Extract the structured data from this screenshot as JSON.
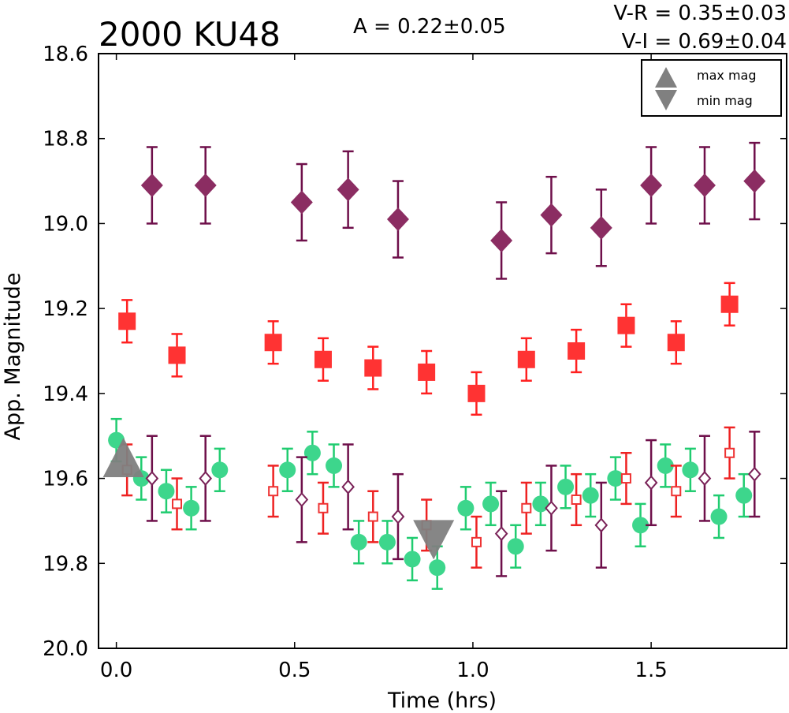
{
  "chart_data": {
    "type": "scatter",
    "title": "2000 KU48",
    "annotations": {
      "amplitude": "A  = 0.22±0.05",
      "v_minus_r": "V-R = 0.35±0.03",
      "v_minus_i": "V-I  = 0.69±0.04"
    },
    "xlabel": "Time (hrs)",
    "ylabel": "App. Magnitude",
    "xlim": [
      -0.05,
      1.88
    ],
    "ylim": [
      20.0,
      18.6
    ],
    "y_inverted": true,
    "xticks": [
      "0.0",
      "0.5",
      "1.0",
      "1.5"
    ],
    "xtick_values": [
      0.0,
      0.5,
      1.0,
      1.5
    ],
    "yticks": [
      "18.6",
      "18.8",
      "19.0",
      "19.2",
      "19.4",
      "19.6",
      "19.8",
      "20.0"
    ],
    "ytick_values": [
      18.6,
      18.8,
      19.0,
      19.2,
      19.4,
      19.6,
      19.8,
      20.0
    ],
    "grid": false,
    "legend_placement": "top-right",
    "legend": [
      {
        "label": "max mag",
        "marker": "triangle-up",
        "color": "#808080"
      },
      {
        "label": "min mag",
        "marker": "triangle-down",
        "color": "#808080"
      }
    ],
    "series": [
      {
        "marker": "diamond-filled",
        "color": "#8b2d62",
        "errcolor": "#6e0f4a",
        "points": [
          {
            "x": 0.1,
            "y": 18.91,
            "err": 0.09
          },
          {
            "x": 0.25,
            "y": 18.91,
            "err": 0.09
          },
          {
            "x": 0.52,
            "y": 18.95,
            "err": 0.09
          },
          {
            "x": 0.65,
            "y": 18.92,
            "err": 0.09
          },
          {
            "x": 0.79,
            "y": 18.99,
            "err": 0.09
          },
          {
            "x": 1.08,
            "y": 19.04,
            "err": 0.09
          },
          {
            "x": 1.22,
            "y": 18.98,
            "err": 0.09
          },
          {
            "x": 1.36,
            "y": 19.01,
            "err": 0.09
          },
          {
            "x": 1.5,
            "y": 18.91,
            "err": 0.09
          },
          {
            "x": 1.65,
            "y": 18.91,
            "err": 0.09
          },
          {
            "x": 1.79,
            "y": 18.9,
            "err": 0.09
          }
        ]
      },
      {
        "marker": "square-filled",
        "color": "#ff3333",
        "errcolor": "#ff2020",
        "points": [
          {
            "x": 0.03,
            "y": 19.23,
            "err": 0.05
          },
          {
            "x": 0.17,
            "y": 19.31,
            "err": 0.05
          },
          {
            "x": 0.44,
            "y": 19.28,
            "err": 0.05
          },
          {
            "x": 0.58,
            "y": 19.32,
            "err": 0.05
          },
          {
            "x": 0.72,
            "y": 19.34,
            "err": 0.05
          },
          {
            "x": 0.87,
            "y": 19.35,
            "err": 0.05
          },
          {
            "x": 1.01,
            "y": 19.4,
            "err": 0.05
          },
          {
            "x": 1.15,
            "y": 19.32,
            "err": 0.05
          },
          {
            "x": 1.29,
            "y": 19.3,
            "err": 0.05
          },
          {
            "x": 1.43,
            "y": 19.24,
            "err": 0.05
          },
          {
            "x": 1.57,
            "y": 19.28,
            "err": 0.05
          },
          {
            "x": 1.72,
            "y": 19.19,
            "err": 0.05
          }
        ]
      },
      {
        "marker": "circle-filled",
        "color": "#3dd68c",
        "errcolor": "#20cc70",
        "points": [
          {
            "x": 0.0,
            "y": 19.51,
            "err": 0.05
          },
          {
            "x": 0.07,
            "y": 19.6,
            "err": 0.05
          },
          {
            "x": 0.14,
            "y": 19.63,
            "err": 0.05
          },
          {
            "x": 0.21,
            "y": 19.67,
            "err": 0.05
          },
          {
            "x": 0.29,
            "y": 19.58,
            "err": 0.05
          },
          {
            "x": 0.48,
            "y": 19.58,
            "err": 0.05
          },
          {
            "x": 0.55,
            "y": 19.54,
            "err": 0.05
          },
          {
            "x": 0.61,
            "y": 19.57,
            "err": 0.05
          },
          {
            "x": 0.68,
            "y": 19.75,
            "err": 0.05
          },
          {
            "x": 0.76,
            "y": 19.75,
            "err": 0.05
          },
          {
            "x": 0.83,
            "y": 19.79,
            "err": 0.05
          },
          {
            "x": 0.9,
            "y": 19.81,
            "err": 0.05
          },
          {
            "x": 0.98,
            "y": 19.67,
            "err": 0.05
          },
          {
            "x": 1.05,
            "y": 19.66,
            "err": 0.05
          },
          {
            "x": 1.12,
            "y": 19.76,
            "err": 0.05
          },
          {
            "x": 1.19,
            "y": 19.66,
            "err": 0.05
          },
          {
            "x": 1.26,
            "y": 19.62,
            "err": 0.05
          },
          {
            "x": 1.33,
            "y": 19.64,
            "err": 0.05
          },
          {
            "x": 1.4,
            "y": 19.6,
            "err": 0.05
          },
          {
            "x": 1.47,
            "y": 19.71,
            "err": 0.05
          },
          {
            "x": 1.54,
            "y": 19.57,
            "err": 0.05
          },
          {
            "x": 1.61,
            "y": 19.58,
            "err": 0.05
          },
          {
            "x": 1.69,
            "y": 19.69,
            "err": 0.05
          },
          {
            "x": 1.76,
            "y": 19.64,
            "err": 0.05
          }
        ]
      },
      {
        "marker": "square-open",
        "color": "#ee3333",
        "errcolor": "#ee2222",
        "points": [
          {
            "x": 0.03,
            "y": 19.58,
            "err": 0.06
          },
          {
            "x": 0.17,
            "y": 19.66,
            "err": 0.06
          },
          {
            "x": 0.44,
            "y": 19.63,
            "err": 0.06
          },
          {
            "x": 0.58,
            "y": 19.67,
            "err": 0.06
          },
          {
            "x": 0.72,
            "y": 19.69,
            "err": 0.06
          },
          {
            "x": 0.87,
            "y": 19.71,
            "err": 0.06
          },
          {
            "x": 1.01,
            "y": 19.75,
            "err": 0.06
          },
          {
            "x": 1.15,
            "y": 19.67,
            "err": 0.06
          },
          {
            "x": 1.29,
            "y": 19.65,
            "err": 0.06
          },
          {
            "x": 1.43,
            "y": 19.6,
            "err": 0.06
          },
          {
            "x": 1.57,
            "y": 19.63,
            "err": 0.06
          },
          {
            "x": 1.72,
            "y": 19.54,
            "err": 0.06
          }
        ]
      },
      {
        "marker": "diamond-open",
        "color": "#7a2258",
        "errcolor": "#6e0f4a",
        "points": [
          {
            "x": 0.1,
            "y": 19.6,
            "err": 0.1
          },
          {
            "x": 0.25,
            "y": 19.6,
            "err": 0.1
          },
          {
            "x": 0.52,
            "y": 19.65,
            "err": 0.1
          },
          {
            "x": 0.65,
            "y": 19.62,
            "err": 0.1
          },
          {
            "x": 0.79,
            "y": 19.69,
            "err": 0.1
          },
          {
            "x": 1.08,
            "y": 19.73,
            "err": 0.1
          },
          {
            "x": 1.22,
            "y": 19.67,
            "err": 0.1
          },
          {
            "x": 1.36,
            "y": 19.71,
            "err": 0.1
          },
          {
            "x": 1.5,
            "y": 19.61,
            "err": 0.1
          },
          {
            "x": 1.65,
            "y": 19.6,
            "err": 0.1
          },
          {
            "x": 1.79,
            "y": 19.59,
            "err": 0.1
          }
        ]
      }
    ],
    "markers": [
      {
        "type": "max mag",
        "shape": "triangle-up",
        "x": 0.02,
        "y": 19.56,
        "color": "#808080"
      },
      {
        "type": "min mag",
        "shape": "triangle-down",
        "x": 0.89,
        "y": 19.75,
        "color": "#808080"
      }
    ]
  }
}
